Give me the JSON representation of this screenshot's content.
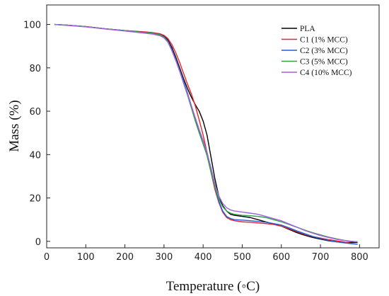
{
  "chart_data": {
    "type": "line",
    "title": "",
    "xlabel": "Temperature (◦C)",
    "ylabel": "Mass (%)",
    "xlim": [
      0,
      850
    ],
    "ylim": [
      -3,
      109
    ],
    "xticks": [
      0,
      100,
      200,
      300,
      400,
      500,
      600,
      700,
      800
    ],
    "yticks": [
      0,
      20,
      40,
      60,
      80,
      100
    ],
    "grid": false,
    "legend_position": "top-right",
    "series": [
      {
        "name": "PLA",
        "color": "#000000",
        "x": [
          20,
          50,
          100,
          150,
          200,
          250,
          270,
          290,
          300,
          310,
          320,
          330,
          340,
          350,
          360,
          370,
          380,
          390,
          400,
          410,
          420,
          430,
          440,
          450,
          460,
          470,
          480,
          500,
          520,
          540,
          560,
          580,
          600,
          620,
          640,
          660,
          680,
          700,
          720,
          740,
          760,
          780,
          795
        ],
        "y": [
          100,
          99.7,
          99,
          98,
          97.2,
          96.5,
          96.2,
          95.5,
          94.6,
          92.8,
          89.5,
          85,
          80,
          75,
          70.5,
          66.5,
          63,
          60,
          55.5,
          49,
          39,
          29,
          21,
          16.5,
          14,
          12.5,
          12,
          11.5,
          11,
          10,
          9,
          8,
          7,
          5.5,
          4,
          2.8,
          1.8,
          1,
          0.3,
          -0.2,
          -0.5,
          -0.5,
          -0.5
        ]
      },
      {
        "name": "C1 (1% MCC)",
        "color": "#e8242a",
        "x": [
          20,
          50,
          100,
          150,
          200,
          250,
          270,
          290,
          300,
          310,
          320,
          330,
          340,
          350,
          360,
          370,
          380,
          390,
          400,
          410,
          420,
          430,
          440,
          450,
          460,
          470,
          480,
          500,
          520,
          540,
          560,
          580,
          600,
          620,
          640,
          660,
          680,
          700,
          720,
          740,
          760,
          780,
          795
        ],
        "y": [
          100,
          99.7,
          99,
          98,
          97.2,
          96.6,
          96.3,
          95.7,
          95,
          93.5,
          90.8,
          87,
          82.5,
          77.5,
          72.5,
          68,
          62.5,
          56,
          49,
          41,
          32,
          24,
          18,
          13.5,
          11,
          10,
          9.5,
          9,
          8.8,
          8.5,
          8.2,
          7.8,
          7,
          5.8,
          4.5,
          3.2,
          2.2,
          1.5,
          0.8,
          0.3,
          -0.3,
          -1,
          -1.3
        ]
      },
      {
        "name": "C2 (3% MCC)",
        "color": "#1f5fd6",
        "x": [
          20,
          50,
          100,
          150,
          200,
          250,
          270,
          290,
          300,
          310,
          320,
          330,
          340,
          350,
          360,
          370,
          380,
          390,
          400,
          410,
          420,
          430,
          440,
          450,
          460,
          470,
          480,
          500,
          520,
          540,
          560,
          580,
          600,
          620,
          640,
          660,
          680,
          700,
          720,
          740,
          760,
          780,
          795
        ],
        "y": [
          100,
          99.7,
          99,
          98,
          97.2,
          96.3,
          96,
          95.3,
          94.3,
          92.3,
          88.5,
          84,
          79,
          74,
          68.5,
          62.5,
          56.5,
          50.5,
          45,
          40,
          33,
          25,
          18.5,
          14,
          11.5,
          10.5,
          10,
          9.8,
          9.5,
          9.2,
          8.8,
          8.2,
          7.5,
          6.2,
          4.8,
          3.5,
          2.3,
          1.3,
          0.5,
          -0.2,
          -0.7,
          -1.1,
          -1.3
        ]
      },
      {
        "name": "C3 (5% MCC)",
        "color": "#2ea043",
        "x": [
          20,
          50,
          100,
          150,
          200,
          250,
          270,
          290,
          300,
          310,
          320,
          330,
          340,
          350,
          360,
          370,
          380,
          390,
          400,
          410,
          420,
          430,
          440,
          450,
          460,
          470,
          480,
          500,
          520,
          540,
          560,
          580,
          600,
          620,
          640,
          660,
          680,
          700,
          720,
          740,
          760,
          780,
          795
        ],
        "y": [
          100,
          99.7,
          99,
          98,
          97.2,
          96.3,
          96,
          95.2,
          94.2,
          92,
          88,
          83.5,
          78.5,
          73,
          67.5,
          61.5,
          55.5,
          50,
          45,
          39.5,
          32,
          25,
          19.5,
          16,
          14,
          13,
          12.5,
          12,
          11.8,
          11.5,
          11,
          10,
          9,
          7.8,
          6.5,
          5.2,
          4,
          3,
          2,
          1.2,
          0.5,
          0,
          -0.2
        ]
      },
      {
        "name": "C4 (10% MCC)",
        "color": "#a55ee0",
        "x": [
          20,
          50,
          100,
          150,
          200,
          250,
          270,
          290,
          300,
          310,
          320,
          330,
          340,
          350,
          360,
          370,
          380,
          390,
          400,
          410,
          420,
          430,
          440,
          450,
          460,
          470,
          480,
          500,
          520,
          540,
          560,
          580,
          600,
          620,
          640,
          660,
          680,
          700,
          720,
          740,
          760,
          780,
          795
        ],
        "y": [
          100,
          99.6,
          98.9,
          97.9,
          97,
          96,
          95.6,
          94.8,
          93.8,
          91.8,
          88,
          83.5,
          78.5,
          73,
          68,
          62.5,
          57,
          51.5,
          46.5,
          41,
          34,
          26.5,
          21,
          17.5,
          15.5,
          14.5,
          14,
          13.5,
          13,
          12.5,
          11.5,
          10.5,
          9.5,
          8,
          6.5,
          5,
          3.8,
          2.7,
          1.8,
          1,
          0.4,
          0,
          -0.2
        ]
      }
    ]
  }
}
